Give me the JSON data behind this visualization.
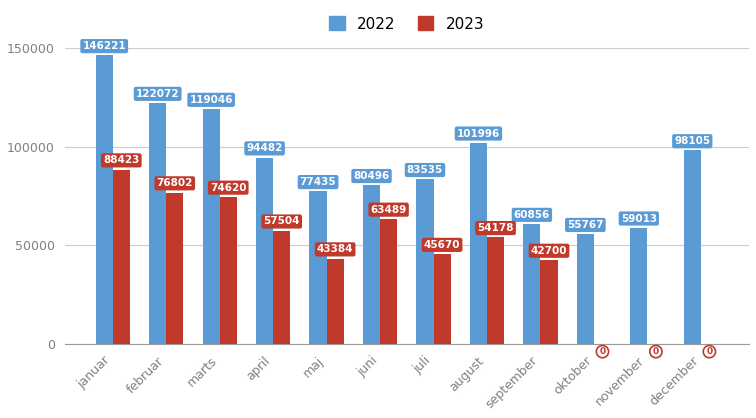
{
  "months": [
    "januar",
    "februar",
    "marts",
    "april",
    "maj",
    "juni",
    "juli",
    "august",
    "september",
    "oktober",
    "november",
    "december"
  ],
  "values_2022": [
    146221,
    122072,
    119046,
    94482,
    77435,
    80496,
    83535,
    101996,
    60856,
    55767,
    59013,
    98105
  ],
  "values_2023": [
    88423,
    76802,
    74620,
    57504,
    43384,
    63489,
    45670,
    54178,
    42700,
    0,
    0,
    0
  ],
  "has_2023": [
    true,
    true,
    true,
    true,
    true,
    true,
    true,
    true,
    true,
    false,
    false,
    false
  ],
  "color_2022": "#5B9BD5",
  "color_2023": "#C0392B",
  "label_2022": "2022",
  "label_2023": "2023",
  "ylim": [
    0,
    155000
  ],
  "yticks": [
    0,
    50000,
    100000,
    150000
  ],
  "bar_width": 0.32,
  "background_color": "#ffffff",
  "grid_color": "#cccccc",
  "label_fontsize": 7.5,
  "tick_fontsize": 9,
  "legend_fontsize": 11
}
